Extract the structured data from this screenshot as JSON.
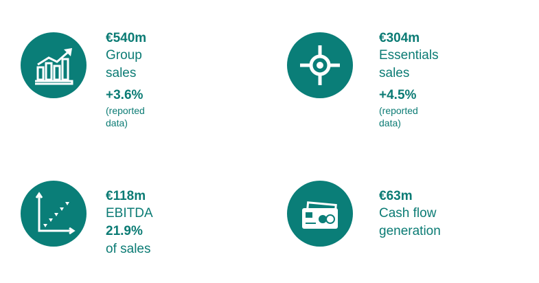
{
  "kpis": [
    {
      "value": "€540m",
      "label": "Group sales",
      "growth": "+3.6%",
      "note": "(reported data)",
      "icon": "bar-chart-trend-icon"
    },
    {
      "value": "€304m",
      "label": "Essentials sales",
      "growth": "+4.5%",
      "note": "(reported data)",
      "icon": "crosshair-target-icon"
    },
    {
      "value": "€118m",
      "label": "EBITDA",
      "margin_value": "21.9%",
      "margin_text": " of sales",
      "icon": "scatter-trend-icon"
    },
    {
      "value": "€63m",
      "label": "Cash flow generation",
      "icon": "payment-cards-icon"
    }
  ],
  "colors": {
    "accent": "#0a7e78",
    "text": "#0b7b74"
  }
}
